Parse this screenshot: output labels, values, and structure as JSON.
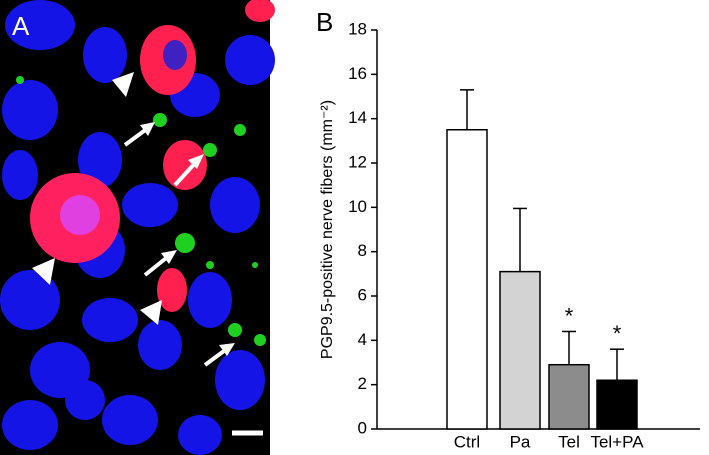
{
  "image": {
    "panel_label": "A"
  },
  "chart_data": {
    "type": "bar",
    "panel_label": "B",
    "y_label": "PGP9.5-positive nerve fibers (mm⁻²)",
    "categories": [
      "Ctrl",
      "Pa",
      "Tel",
      "Tel+PA"
    ],
    "values": [
      13.5,
      7.1,
      2.9,
      2.2
    ],
    "errors": [
      1.8,
      2.85,
      1.5,
      1.4
    ],
    "colors": [
      "#ffffff",
      "#d3d3d3",
      "#8c8c8c",
      "#000000"
    ],
    "annotations": [
      {
        "x": "Tel",
        "text": "*"
      },
      {
        "x": "Tel+PA",
        "text": "*"
      }
    ],
    "ylim": [
      0,
      18
    ],
    "yticks": [
      0,
      2,
      4,
      6,
      8,
      10,
      12,
      14,
      16,
      18
    ]
  }
}
